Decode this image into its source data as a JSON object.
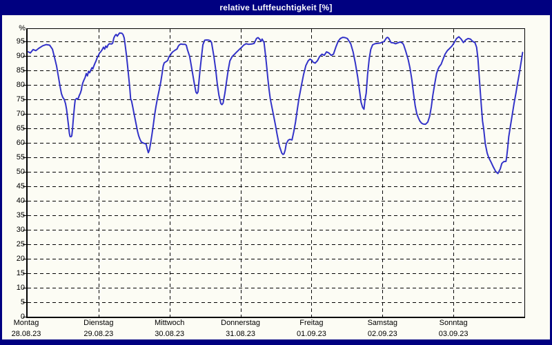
{
  "window": {
    "title": "relative Luftfeuchtigkeit [%]"
  },
  "colors": {
    "title_bar_bg": "#000080",
    "title_text": "#ffffff",
    "frame": "#000080",
    "background": "#fcfcf4",
    "grid": "#000000",
    "line": "#3232c8"
  },
  "chart_data": {
    "type": "line",
    "title": "relative Luftfeuchtigkeit [%]",
    "ylabel": "%",
    "xlabel": "",
    "ylim": [
      0,
      100
    ],
    "y_ticks": [
      0,
      5,
      10,
      15,
      20,
      25,
      30,
      35,
      40,
      45,
      50,
      55,
      60,
      65,
      70,
      75,
      80,
      85,
      90,
      95
    ],
    "grid": true,
    "legend": "none",
    "x_range_days": [
      0,
      7
    ],
    "x_labels": [
      {
        "day": "Montag",
        "date": "28.08.23"
      },
      {
        "day": "Dienstag",
        "date": "29.08.23"
      },
      {
        "day": "Mittwoch",
        "date": "30.08.23"
      },
      {
        "day": "Donnerstag",
        "date": "31.08.23"
      },
      {
        "day": "Freitag",
        "date": "01.09.23"
      },
      {
        "day": "Samstag",
        "date": "02.09.23"
      },
      {
        "day": "Sonntag",
        "date": "03.09.23"
      }
    ],
    "series": [
      {
        "name": "relative Luftfeuchtigkeit",
        "color": "#3232c8",
        "points": [
          [
            0.01,
            91.4
          ],
          [
            0.039,
            91.0
          ],
          [
            0.078,
            92.2
          ],
          [
            0.117,
            91.8
          ],
          [
            0.156,
            92.6
          ],
          [
            0.214,
            93.5
          ],
          [
            0.263,
            93.9
          ],
          [
            0.311,
            93.7
          ],
          [
            0.35,
            92.3
          ],
          [
            0.379,
            89.5
          ],
          [
            0.408,
            86.5
          ],
          [
            0.437,
            82.5
          ],
          [
            0.457,
            79.5
          ],
          [
            0.476,
            77.0
          ],
          [
            0.496,
            75.7
          ],
          [
            0.515,
            75.0
          ],
          [
            0.535,
            73.5
          ],
          [
            0.549,
            71.5
          ],
          [
            0.564,
            68.5
          ],
          [
            0.578,
            65.5
          ],
          [
            0.588,
            63.3
          ],
          [
            0.598,
            62.2
          ],
          [
            0.612,
            62.1
          ],
          [
            0.622,
            62.4
          ],
          [
            0.632,
            64.5
          ],
          [
            0.642,
            67.5
          ],
          [
            0.652,
            70.5
          ],
          [
            0.662,
            73.0
          ],
          [
            0.671,
            74.8
          ],
          [
            0.69,
            75.3
          ],
          [
            0.71,
            75.1
          ],
          [
            0.729,
            76.4
          ],
          [
            0.743,
            77.1
          ],
          [
            0.758,
            78.3
          ],
          [
            0.765,
            79.5
          ],
          [
            0.778,
            80.7
          ],
          [
            0.794,
            81.7
          ],
          [
            0.81,
            82.5
          ],
          [
            0.826,
            83.9
          ],
          [
            0.843,
            83.1
          ],
          [
            0.858,
            84.7
          ],
          [
            0.875,
            84.2
          ],
          [
            0.891,
            85.1
          ],
          [
            0.907,
            85.9
          ],
          [
            0.919,
            85.5
          ],
          [
            0.93,
            86.3
          ],
          [
            0.95,
            87.5
          ],
          [
            0.965,
            88.3
          ],
          [
            0.982,
            89.5
          ],
          [
            0.998,
            90.2
          ],
          [
            1.014,
            91.0
          ],
          [
            1.031,
            91.4
          ],
          [
            1.047,
            92.0
          ],
          [
            1.069,
            93.0
          ],
          [
            1.086,
            92.3
          ],
          [
            1.102,
            93.4
          ],
          [
            1.118,
            92.9
          ],
          [
            1.135,
            93.8
          ],
          [
            1.15,
            94.2
          ],
          [
            1.183,
            94.1
          ],
          [
            1.199,
            94.4
          ],
          [
            1.215,
            96.2
          ],
          [
            1.232,
            97.0
          ],
          [
            1.247,
            97.4
          ],
          [
            1.264,
            96.8
          ],
          [
            1.28,
            97.4
          ],
          [
            1.296,
            97.9
          ],
          [
            1.329,
            97.8
          ],
          [
            1.346,
            97.3
          ],
          [
            1.361,
            96.2
          ],
          [
            1.377,
            93.4
          ],
          [
            1.393,
            90.2
          ],
          [
            1.41,
            86.3
          ],
          [
            1.426,
            82.3
          ],
          [
            1.442,
            78.3
          ],
          [
            1.452,
            75.2
          ],
          [
            1.465,
            74.4
          ],
          [
            1.485,
            72.0
          ],
          [
            1.5,
            70.0
          ],
          [
            1.517,
            68.0
          ],
          [
            1.529,
            66.4
          ],
          [
            1.549,
            64.0
          ],
          [
            1.565,
            62.4
          ],
          [
            1.582,
            61.3
          ],
          [
            1.597,
            60.5
          ],
          [
            1.614,
            60.1
          ],
          [
            1.643,
            59.8
          ],
          [
            1.669,
            59.6
          ],
          [
            1.685,
            58.0
          ],
          [
            1.701,
            56.6
          ],
          [
            1.716,
            57.5
          ],
          [
            1.731,
            59.5
          ],
          [
            1.75,
            62.5
          ],
          [
            1.77,
            66.0
          ],
          [
            1.789,
            69.5
          ],
          [
            1.808,
            72.5
          ],
          [
            1.831,
            75.5
          ],
          [
            1.852,
            78.0
          ],
          [
            1.876,
            81.0
          ],
          [
            1.896,
            84.0
          ],
          [
            1.91,
            86.5
          ],
          [
            1.925,
            87.6
          ],
          [
            1.949,
            88.0
          ],
          [
            1.974,
            88.4
          ],
          [
            1.993,
            89.8
          ],
          [
            2.009,
            90.2
          ],
          [
            2.025,
            90.8
          ],
          [
            2.041,
            91.3
          ],
          [
            2.074,
            91.9
          ],
          [
            2.107,
            92.4
          ],
          [
            2.122,
            93.3
          ],
          [
            2.139,
            93.8
          ],
          [
            2.158,
            94.1
          ],
          [
            2.187,
            94.0
          ],
          [
            2.219,
            94.0
          ],
          [
            2.236,
            93.7
          ],
          [
            2.252,
            92.2
          ],
          [
            2.284,
            89.8
          ],
          [
            2.317,
            85.1
          ],
          [
            2.35,
            80.3
          ],
          [
            2.372,
            77.5
          ],
          [
            2.387,
            77.0
          ],
          [
            2.401,
            77.6
          ],
          [
            2.414,
            81.1
          ],
          [
            2.43,
            85.1
          ],
          [
            2.447,
            89.0
          ],
          [
            2.469,
            93.8
          ],
          [
            2.495,
            95.4
          ],
          [
            2.527,
            95.5
          ],
          [
            2.557,
            95.4
          ],
          [
            2.576,
            95.2
          ],
          [
            2.592,
            94.6
          ],
          [
            2.625,
            89.8
          ],
          [
            2.651,
            85.1
          ],
          [
            2.673,
            80.3
          ],
          [
            2.696,
            76.4
          ],
          [
            2.722,
            73.6
          ],
          [
            2.738,
            73.2
          ],
          [
            2.754,
            73.7
          ],
          [
            2.78,
            77.1
          ],
          [
            2.803,
            81.1
          ],
          [
            2.826,
            85.1
          ],
          [
            2.851,
            88.3
          ],
          [
            2.884,
            89.8
          ],
          [
            2.917,
            90.6
          ],
          [
            2.949,
            91.4
          ],
          [
            2.982,
            92.2
          ],
          [
            3.014,
            92.9
          ],
          [
            3.043,
            93.7
          ],
          [
            3.079,
            94.2
          ],
          [
            3.111,
            94.0
          ],
          [
            3.16,
            94.1
          ],
          [
            3.192,
            94.3
          ],
          [
            3.225,
            96.0
          ],
          [
            3.247,
            96.3
          ],
          [
            3.273,
            95.7
          ],
          [
            3.289,
            95.0
          ],
          [
            3.305,
            95.8
          ],
          [
            3.332,
            94.6
          ],
          [
            3.354,
            89.8
          ],
          [
            3.371,
            85.9
          ],
          [
            3.386,
            81.9
          ],
          [
            3.403,
            78.3
          ],
          [
            3.419,
            75.2
          ],
          [
            3.442,
            72.4
          ],
          [
            3.468,
            69.2
          ],
          [
            3.493,
            66.0
          ],
          [
            3.516,
            62.9
          ],
          [
            3.548,
            58.9
          ],
          [
            3.581,
            56.5
          ],
          [
            3.597,
            56.0
          ],
          [
            3.613,
            56.2
          ],
          [
            3.629,
            57.5
          ],
          [
            3.645,
            59.7
          ],
          [
            3.672,
            60.9
          ],
          [
            3.694,
            61.2
          ],
          [
            3.726,
            61.0
          ],
          [
            3.752,
            64.0
          ],
          [
            3.775,
            67.2
          ],
          [
            3.798,
            71.2
          ],
          [
            3.823,
            75.2
          ],
          [
            3.856,
            79.5
          ],
          [
            3.888,
            83.5
          ],
          [
            3.921,
            86.7
          ],
          [
            3.954,
            88.3
          ],
          [
            3.979,
            88.9
          ],
          [
            4.005,
            88.5
          ],
          [
            4.018,
            87.9
          ],
          [
            4.051,
            87.5
          ],
          [
            4.083,
            88.3
          ],
          [
            4.115,
            89.8
          ],
          [
            4.148,
            90.6
          ],
          [
            4.18,
            90.2
          ],
          [
            4.213,
            91.4
          ],
          [
            4.246,
            91.0
          ],
          [
            4.278,
            90.2
          ],
          [
            4.31,
            90.6
          ],
          [
            4.343,
            93.0
          ],
          [
            4.375,
            95.0
          ],
          [
            4.407,
            96.0
          ],
          [
            4.44,
            96.4
          ],
          [
            4.472,
            96.3
          ],
          [
            4.505,
            96.0
          ],
          [
            4.521,
            95.4
          ],
          [
            4.553,
            94.2
          ],
          [
            4.586,
            91.4
          ],
          [
            4.618,
            87.5
          ],
          [
            4.651,
            82.7
          ],
          [
            4.677,
            77.9
          ],
          [
            4.699,
            74.0
          ],
          [
            4.721,
            72.2
          ],
          [
            4.74,
            71.6
          ],
          [
            4.754,
            74.8
          ],
          [
            4.771,
            77.1
          ],
          [
            4.79,
            83.5
          ],
          [
            4.813,
            89.0
          ],
          [
            4.835,
            92.2
          ],
          [
            4.861,
            93.8
          ],
          [
            4.893,
            94.2
          ],
          [
            4.926,
            94.3
          ],
          [
            4.958,
            94.4
          ],
          [
            4.991,
            94.6
          ],
          [
            5.024,
            95.0
          ],
          [
            5.056,
            96.2
          ],
          [
            5.072,
            96.4
          ],
          [
            5.088,
            96.1
          ],
          [
            5.121,
            94.6
          ],
          [
            5.153,
            94.5
          ],
          [
            5.185,
            94.2
          ],
          [
            5.218,
            94.5
          ],
          [
            5.25,
            94.8
          ],
          [
            5.283,
            94.4
          ],
          [
            5.299,
            93.8
          ],
          [
            5.331,
            91.4
          ],
          [
            5.364,
            88.6
          ],
          [
            5.387,
            85.9
          ],
          [
            5.413,
            81.9
          ],
          [
            5.438,
            77.1
          ],
          [
            5.461,
            72.8
          ],
          [
            5.484,
            70.0
          ],
          [
            5.503,
            68.8
          ],
          [
            5.525,
            67.6
          ],
          [
            5.549,
            66.8
          ],
          [
            5.574,
            66.5
          ],
          [
            5.607,
            66.4
          ],
          [
            5.623,
            66.8
          ],
          [
            5.639,
            67.2
          ],
          [
            5.665,
            69.2
          ],
          [
            5.688,
            72.4
          ],
          [
            5.71,
            76.4
          ],
          [
            5.736,
            80.3
          ],
          [
            5.762,
            83.9
          ],
          [
            5.785,
            85.5
          ],
          [
            5.801,
            86.3
          ],
          [
            5.827,
            87.1
          ],
          [
            5.85,
            88.6
          ],
          [
            5.882,
            90.6
          ],
          [
            5.914,
            91.8
          ],
          [
            5.947,
            92.6
          ],
          [
            5.979,
            93.4
          ],
          [
            6.011,
            94.6
          ],
          [
            6.044,
            96.0
          ],
          [
            6.076,
            96.6
          ],
          [
            6.108,
            95.8
          ],
          [
            6.141,
            94.6
          ],
          [
            6.173,
            95.5
          ],
          [
            6.206,
            96.0
          ],
          [
            6.239,
            95.8
          ],
          [
            6.271,
            95.0
          ],
          [
            6.303,
            94.6
          ],
          [
            6.326,
            93.0
          ],
          [
            6.346,
            89.0
          ],
          [
            6.361,
            83.5
          ],
          [
            6.378,
            77.9
          ],
          [
            6.394,
            72.4
          ],
          [
            6.41,
            67.6
          ],
          [
            6.426,
            64.8
          ],
          [
            6.449,
            59.7
          ],
          [
            6.475,
            56.5
          ],
          [
            6.497,
            54.9
          ],
          [
            6.53,
            53.3
          ],
          [
            6.562,
            51.7
          ],
          [
            6.594,
            50.2
          ],
          [
            6.627,
            49.4
          ],
          [
            6.66,
            51.0
          ],
          [
            6.682,
            52.9
          ],
          [
            6.708,
            53.5
          ],
          [
            6.74,
            53.6
          ],
          [
            6.752,
            55.5
          ],
          [
            6.766,
            58.5
          ],
          [
            6.779,
            62.1
          ],
          [
            6.805,
            66.0
          ],
          [
            6.831,
            70.0
          ],
          [
            6.854,
            73.6
          ],
          [
            6.88,
            77.1
          ],
          [
            6.902,
            80.3
          ],
          [
            6.925,
            83.5
          ],
          [
            6.944,
            86.3
          ],
          [
            6.961,
            89.0
          ],
          [
            6.975,
            91.2
          ]
        ]
      }
    ]
  }
}
